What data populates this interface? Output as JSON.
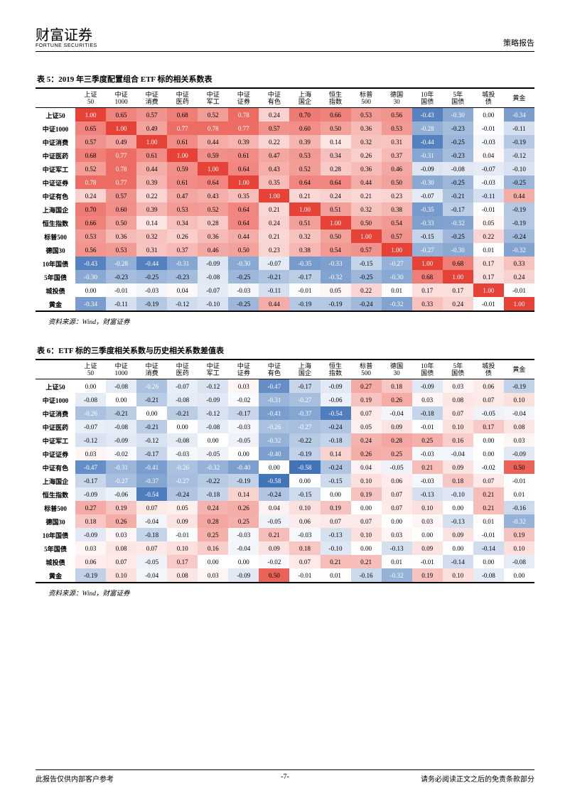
{
  "header": {
    "logo_cn": "财富证券",
    "logo_en": "FORTUNE SECURITIES",
    "doc_type": "策略报告"
  },
  "footer": {
    "left": "此报告仅供内部客户参考",
    "page": "-7-",
    "right": "请务必阅读正文之后的免责条款部分"
  },
  "columns": [
    "上证50",
    "中证1000",
    "中证消费",
    "中证医药",
    "中证军工",
    "中证证券",
    "中证有色",
    "上海国企",
    "恒生指数",
    "标普500",
    "德国30",
    "10年国债",
    "5年国债",
    "城投债",
    "黄金"
  ],
  "columns_short": [
    "上证 50",
    "中证 1000",
    "中证 消费",
    "中证 医药",
    "中证 军工",
    "中证 证券",
    "中证 有色",
    "上海 国企",
    "恒生 指数",
    "标普 500",
    "德国 30",
    "10年 国债",
    "5年 国债",
    "城投 债",
    "黄金"
  ],
  "row_labels": [
    "上证50",
    "中证1000",
    "中证消费",
    "中证医药",
    "中证军工",
    "中证证券",
    "中证有色",
    "上海国企",
    "恒生指数",
    "标普500",
    "德国30",
    "10年国债",
    "5年国债",
    "城投债",
    "黄金"
  ],
  "table5": {
    "title": "表 5：2019 年三季度配置组合 ETF 标的相关系数表",
    "source": "资料来源：Wind，财富证券",
    "data": [
      [
        1.0,
        0.65,
        0.57,
        0.68,
        0.52,
        0.78,
        0.24,
        0.7,
        0.66,
        0.53,
        0.56,
        -0.43,
        -0.3,
        0.0,
        -0.34
      ],
      [
        0.65,
        1.0,
        0.49,
        0.77,
        0.78,
        0.77,
        0.57,
        0.6,
        0.5,
        0.36,
        0.53,
        -0.28,
        -0.23,
        -0.01,
        -0.11
      ],
      [
        0.57,
        0.49,
        1.0,
        0.61,
        0.44,
        0.39,
        0.22,
        0.39,
        0.14,
        0.32,
        0.31,
        -0.44,
        -0.25,
        -0.03,
        -0.19
      ],
      [
        0.68,
        0.77,
        0.61,
        1.0,
        0.59,
        0.61,
        0.47,
        0.53,
        0.34,
        0.26,
        0.37,
        -0.31,
        -0.23,
        0.04,
        -0.12
      ],
      [
        0.52,
        0.78,
        0.44,
        0.59,
        1.0,
        0.64,
        0.43,
        0.52,
        0.28,
        0.36,
        0.46,
        -0.09,
        -0.08,
        -0.07,
        -0.1
      ],
      [
        0.78,
        0.77,
        0.39,
        0.61,
        0.64,
        1.0,
        0.35,
        0.64,
        0.64,
        0.44,
        0.5,
        -0.3,
        -0.25,
        -0.03,
        -0.25
      ],
      [
        0.24,
        0.57,
        0.22,
        0.47,
        0.43,
        0.35,
        1.0,
        0.21,
        0.24,
        0.21,
        0.23,
        -0.07,
        -0.21,
        -0.11,
        0.44
      ],
      [
        0.7,
        0.6,
        0.39,
        0.53,
        0.52,
        0.64,
        0.21,
        1.0,
        0.51,
        0.32,
        0.38,
        -0.35,
        -0.17,
        -0.01,
        -0.19
      ],
      [
        0.66,
        0.5,
        0.14,
        0.34,
        0.28,
        0.64,
        0.24,
        0.51,
        1.0,
        0.5,
        0.54,
        -0.33,
        -0.32,
        0.05,
        -0.19
      ],
      [
        0.53,
        0.36,
        0.32,
        0.26,
        0.36,
        0.44,
        0.21,
        0.32,
        0.5,
        1.0,
        0.57,
        -0.15,
        -0.25,
        0.22,
        -0.24
      ],
      [
        0.56,
        0.53,
        0.31,
        0.37,
        0.46,
        0.5,
        0.23,
        0.38,
        0.54,
        0.57,
        1.0,
        -0.27,
        -0.3,
        0.01,
        -0.32
      ],
      [
        -0.43,
        -0.28,
        -0.44,
        -0.31,
        -0.09,
        -0.3,
        -0.07,
        -0.35,
        -0.33,
        -0.15,
        -0.27,
        1.0,
        0.68,
        0.17,
        0.33
      ],
      [
        -0.3,
        -0.23,
        -0.25,
        -0.23,
        -0.08,
        -0.25,
        -0.21,
        -0.17,
        -0.32,
        -0.25,
        -0.3,
        0.68,
        1.0,
        0.17,
        0.24
      ],
      [
        0.0,
        -0.01,
        -0.03,
        0.04,
        -0.07,
        -0.03,
        -0.11,
        -0.01,
        0.05,
        0.22,
        0.01,
        0.17,
        0.17,
        1.0,
        -0.01
      ],
      [
        -0.34,
        -0.11,
        -0.19,
        -0.12,
        -0.1,
        -0.25,
        0.44,
        -0.19,
        -0.19,
        -0.24,
        -0.32,
        0.33,
        0.24,
        -0.01,
        1.0
      ]
    ]
  },
  "table6": {
    "title": "表 6：ETF 标的三季度相关系数与历史相关系数差值表",
    "source": "资料来源：Wind，财富证券",
    "data": [
      [
        0.0,
        -0.08,
        -0.26,
        -0.07,
        -0.12,
        0.03,
        -0.47,
        -0.17,
        -0.09,
        0.27,
        0.18,
        -0.09,
        0.03,
        0.06,
        -0.19
      ],
      [
        -0.08,
        0.0,
        -0.21,
        -0.08,
        -0.09,
        -0.02,
        -0.31,
        -0.27,
        -0.06,
        0.19,
        0.26,
        0.03,
        0.08,
        0.07,
        0.1
      ],
      [
        -0.26,
        -0.21,
        0.0,
        -0.21,
        -0.12,
        -0.17,
        -0.41,
        -0.37,
        -0.54,
        0.07,
        -0.04,
        -0.18,
        0.07,
        -0.05,
        -0.04
      ],
      [
        -0.07,
        -0.08,
        -0.21,
        0.0,
        -0.08,
        -0.03,
        -0.26,
        -0.27,
        -0.24,
        0.05,
        0.09,
        -0.01,
        0.1,
        0.17,
        0.08
      ],
      [
        -0.12,
        -0.09,
        -0.12,
        -0.08,
        0.0,
        -0.05,
        -0.32,
        -0.22,
        -0.18,
        0.24,
        0.28,
        0.25,
        0.16,
        -0.0,
        0.03
      ],
      [
        0.03,
        -0.02,
        -0.17,
        -0.03,
        -0.05,
        0.0,
        -0.4,
        -0.19,
        0.14,
        0.26,
        0.25,
        -0.03,
        -0.04,
        0.0,
        -0.09
      ],
      [
        -0.47,
        -0.31,
        -0.41,
        -0.26,
        -0.32,
        -0.4,
        0.0,
        -0.58,
        -0.24,
        0.04,
        -0.05,
        0.21,
        0.09,
        -0.02,
        0.5
      ],
      [
        -0.17,
        -0.27,
        -0.37,
        -0.27,
        -0.22,
        -0.19,
        -0.58,
        0.0,
        -0.15,
        0.1,
        0.06,
        -0.03,
        0.18,
        0.07,
        -0.01
      ],
      [
        -0.09,
        -0.06,
        -0.54,
        -0.24,
        -0.18,
        0.14,
        -0.24,
        -0.15,
        0.0,
        0.19,
        0.07,
        -0.13,
        -0.1,
        0.21,
        0.01
      ],
      [
        0.27,
        0.19,
        0.07,
        0.05,
        0.24,
        0.26,
        0.04,
        0.1,
        0.19,
        0.0,
        0.07,
        0.1,
        0.0,
        0.21,
        -0.16
      ],
      [
        0.18,
        0.26,
        -0.04,
        0.09,
        0.28,
        0.25,
        -0.05,
        0.06,
        0.07,
        0.07,
        0.0,
        0.03,
        -0.13,
        0.01,
        -0.32
      ],
      [
        -0.09,
        0.03,
        -0.18,
        -0.01,
        0.25,
        -0.03,
        0.21,
        -0.03,
        -0.13,
        0.1,
        0.03,
        0.0,
        0.09,
        -0.01,
        0.19
      ],
      [
        0.03,
        0.08,
        0.07,
        0.1,
        0.16,
        -0.04,
        0.09,
        0.18,
        -0.1,
        0.0,
        -0.13,
        0.09,
        0.0,
        -0.14,
        0.1
      ],
      [
        0.06,
        0.07,
        -0.05,
        0.17,
        -0.0,
        0.0,
        -0.02,
        0.07,
        0.21,
        0.21,
        0.01,
        -0.01,
        -0.14,
        0.0,
        -0.08
      ],
      [
        -0.19,
        0.1,
        -0.04,
        0.08,
        0.03,
        -0.09,
        0.5,
        -0.01,
        0.01,
        -0.16,
        -0.32,
        0.19,
        0.1,
        -0.08,
        0.0
      ]
    ]
  },
  "colorscale": {
    "pos_max": "#e74237",
    "pos_min": "#ffffff",
    "neg_min": "#ffffff",
    "neg_max": "#3b6fb6"
  }
}
